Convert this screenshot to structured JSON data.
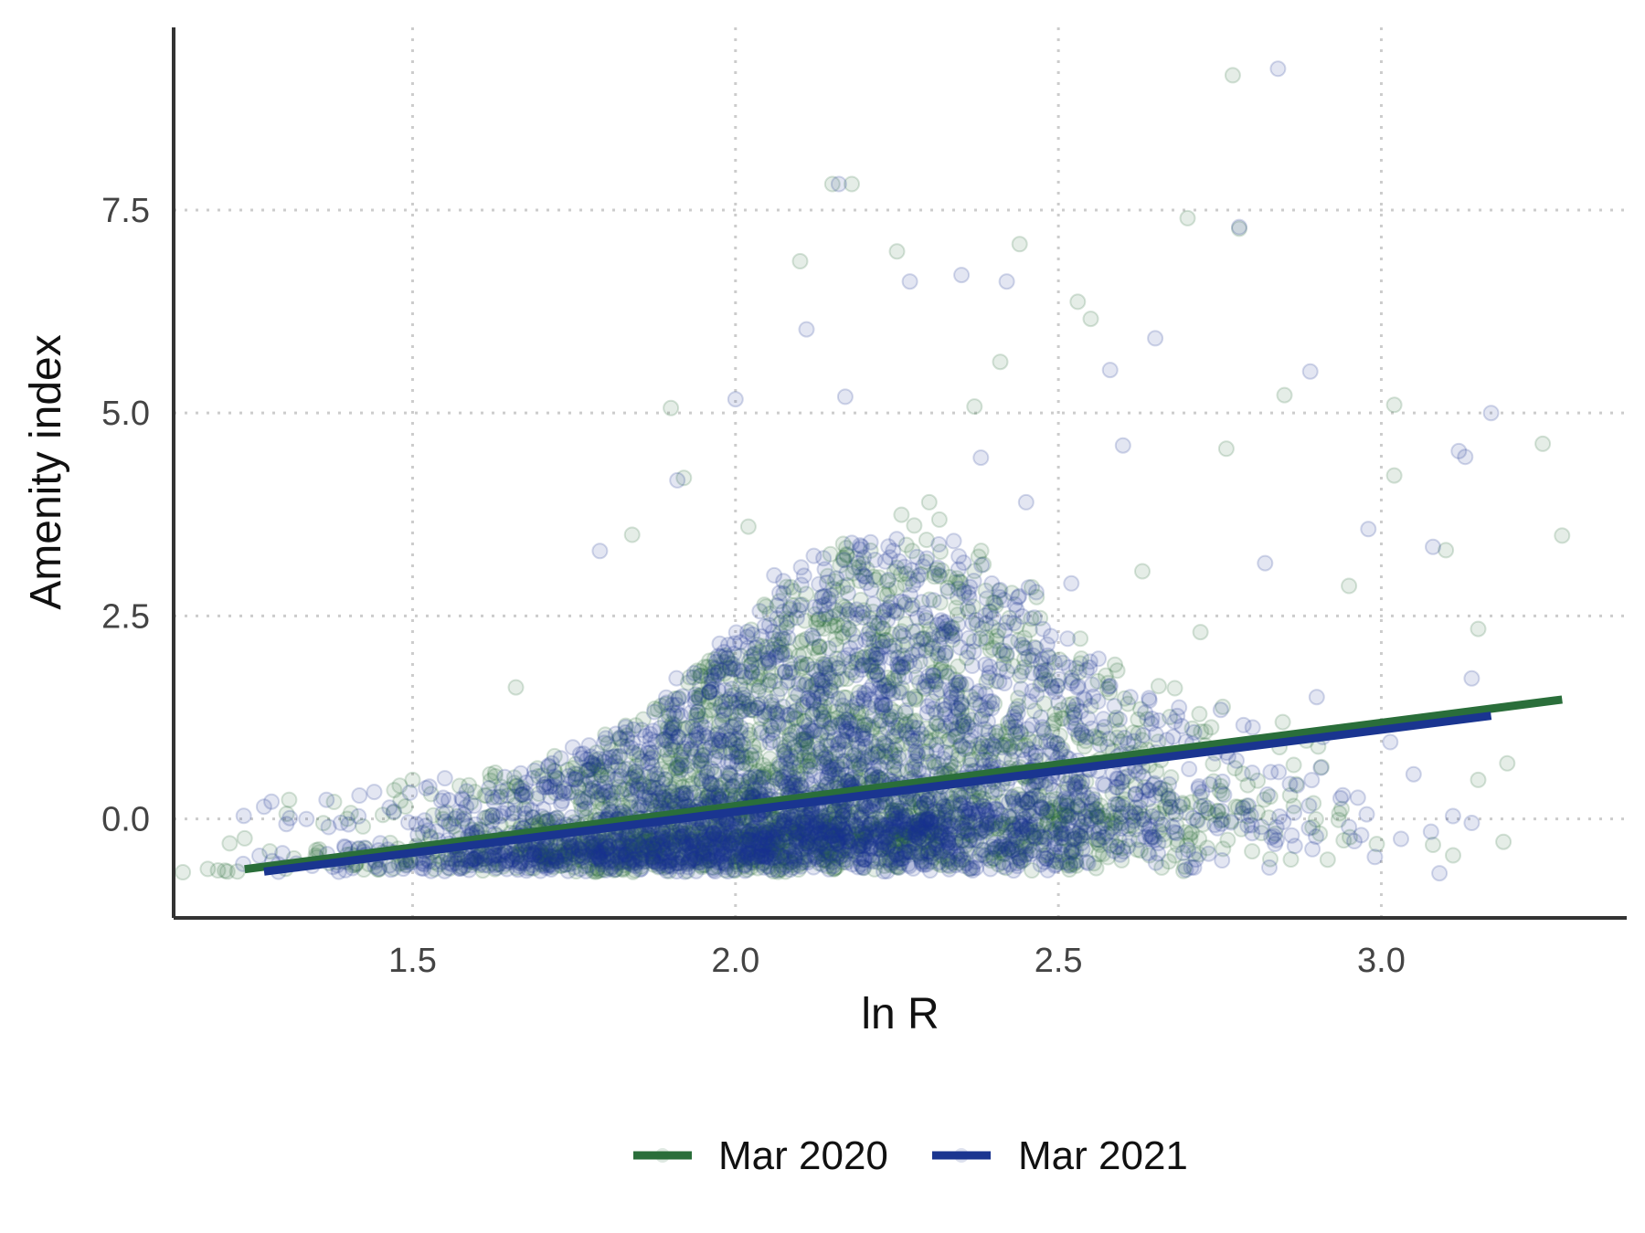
{
  "chart_data": {
    "type": "scatter",
    "title": "",
    "xlabel": "ln R",
    "ylabel": "Amenity index",
    "xlim": [
      1.13,
      3.38
    ],
    "ylim": [
      -1.22,
      9.75
    ],
    "xticks": [
      1.5,
      2.0,
      2.5,
      3.0
    ],
    "yticks": [
      0.0,
      2.5,
      5.0,
      7.5
    ],
    "xtick_labels": [
      "1.5",
      "2.0",
      "2.5",
      "3.0"
    ],
    "ytick_labels": [
      "0.0",
      "2.5",
      "5.0",
      "7.5"
    ],
    "grid": "dotted",
    "legend_position": "bottom",
    "series": [
      {
        "name": "Mar 2020",
        "color": "#2a6e3a",
        "point_alpha": 0.12,
        "fit": {
          "x": [
            1.24,
            3.28
          ],
          "y": [
            -0.62,
            1.47
          ]
        },
        "points": [
          [
            1.24,
            -0.24
          ],
          [
            1.5,
            0.48
          ],
          [
            1.66,
            1.62
          ],
          [
            1.9,
            5.06
          ],
          [
            1.92,
            4.2
          ],
          [
            2.1,
            6.87
          ],
          [
            2.15,
            7.82
          ],
          [
            2.18,
            7.82
          ],
          [
            2.25,
            6.99
          ],
          [
            2.37,
            5.08
          ],
          [
            2.41,
            5.63
          ],
          [
            2.44,
            7.08
          ],
          [
            2.53,
            6.37
          ],
          [
            2.55,
            6.16
          ],
          [
            2.7,
            7.4
          ],
          [
            2.77,
            9.16
          ],
          [
            2.78,
            7.27
          ],
          [
            2.76,
            4.56
          ],
          [
            2.85,
            5.22
          ],
          [
            3.25,
            4.62
          ],
          [
            3.28,
            3.49
          ],
          [
            3.02,
            4.23
          ],
          [
            3.02,
            5.1
          ],
          [
            3.1,
            3.31
          ],
          [
            2.95,
            2.87
          ],
          [
            3.15,
            2.34
          ],
          [
            3.15,
            0.48
          ],
          [
            3.08,
            -0.32
          ],
          [
            2.86,
            -0.5
          ],
          [
            2.8,
            -0.4
          ],
          [
            2.66,
            -0.6
          ],
          [
            1.4,
            -0.5
          ],
          [
            1.35,
            -0.45
          ],
          [
            2.02,
            3.6
          ],
          [
            2.3,
            3.9
          ],
          [
            1.84,
            3.5
          ],
          [
            2.63,
            3.05
          ],
          [
            2.72,
            2.3
          ],
          [
            1.58,
            0.0
          ],
          [
            1.62,
            0.55
          ]
        ]
      },
      {
        "name": "Mar 2021",
        "color": "#1a3590",
        "point_alpha": 0.12,
        "fit": {
          "x": [
            1.27,
            3.17
          ],
          "y": [
            -0.65,
            1.27
          ]
        },
        "points": [
          [
            1.27,
            0.15
          ],
          [
            1.31,
            0.01
          ],
          [
            1.37,
            -0.1
          ],
          [
            2.0,
            5.17
          ],
          [
            2.11,
            6.03
          ],
          [
            2.16,
            7.82
          ],
          [
            2.27,
            6.62
          ],
          [
            2.35,
            6.7
          ],
          [
            2.42,
            6.62
          ],
          [
            2.58,
            5.53
          ],
          [
            2.84,
            9.24
          ],
          [
            2.78,
            7.29
          ],
          [
            2.65,
            5.92
          ],
          [
            2.89,
            5.51
          ],
          [
            3.17,
            5.0
          ],
          [
            3.12,
            4.53
          ],
          [
            3.13,
            4.46
          ],
          [
            2.98,
            3.57
          ],
          [
            3.08,
            3.35
          ],
          [
            3.14,
            1.73
          ],
          [
            3.09,
            -0.67
          ],
          [
            3.14,
            -0.05
          ],
          [
            2.99,
            -0.47
          ],
          [
            2.95,
            -0.1
          ],
          [
            2.71,
            -0.6
          ],
          [
            1.32,
            -0.55
          ],
          [
            1.91,
            4.17
          ],
          [
            2.17,
            5.2
          ],
          [
            2.38,
            4.45
          ],
          [
            2.6,
            4.6
          ],
          [
            1.79,
            3.3
          ],
          [
            2.45,
            3.9
          ],
          [
            2.82,
            3.15
          ],
          [
            2.06,
            3.0
          ],
          [
            2.52,
            2.9
          ],
          [
            1.55,
            0.5
          ],
          [
            1.64,
            -0.25
          ],
          [
            2.9,
            1.5
          ],
          [
            3.05,
            0.55
          ],
          [
            1.45,
            -0.3
          ]
        ]
      }
    ],
    "dense_cloud": {
      "x_center": 2.12,
      "x_sd": 0.3,
      "y_floor": -0.66,
      "n_per_series": 2600
    }
  }
}
